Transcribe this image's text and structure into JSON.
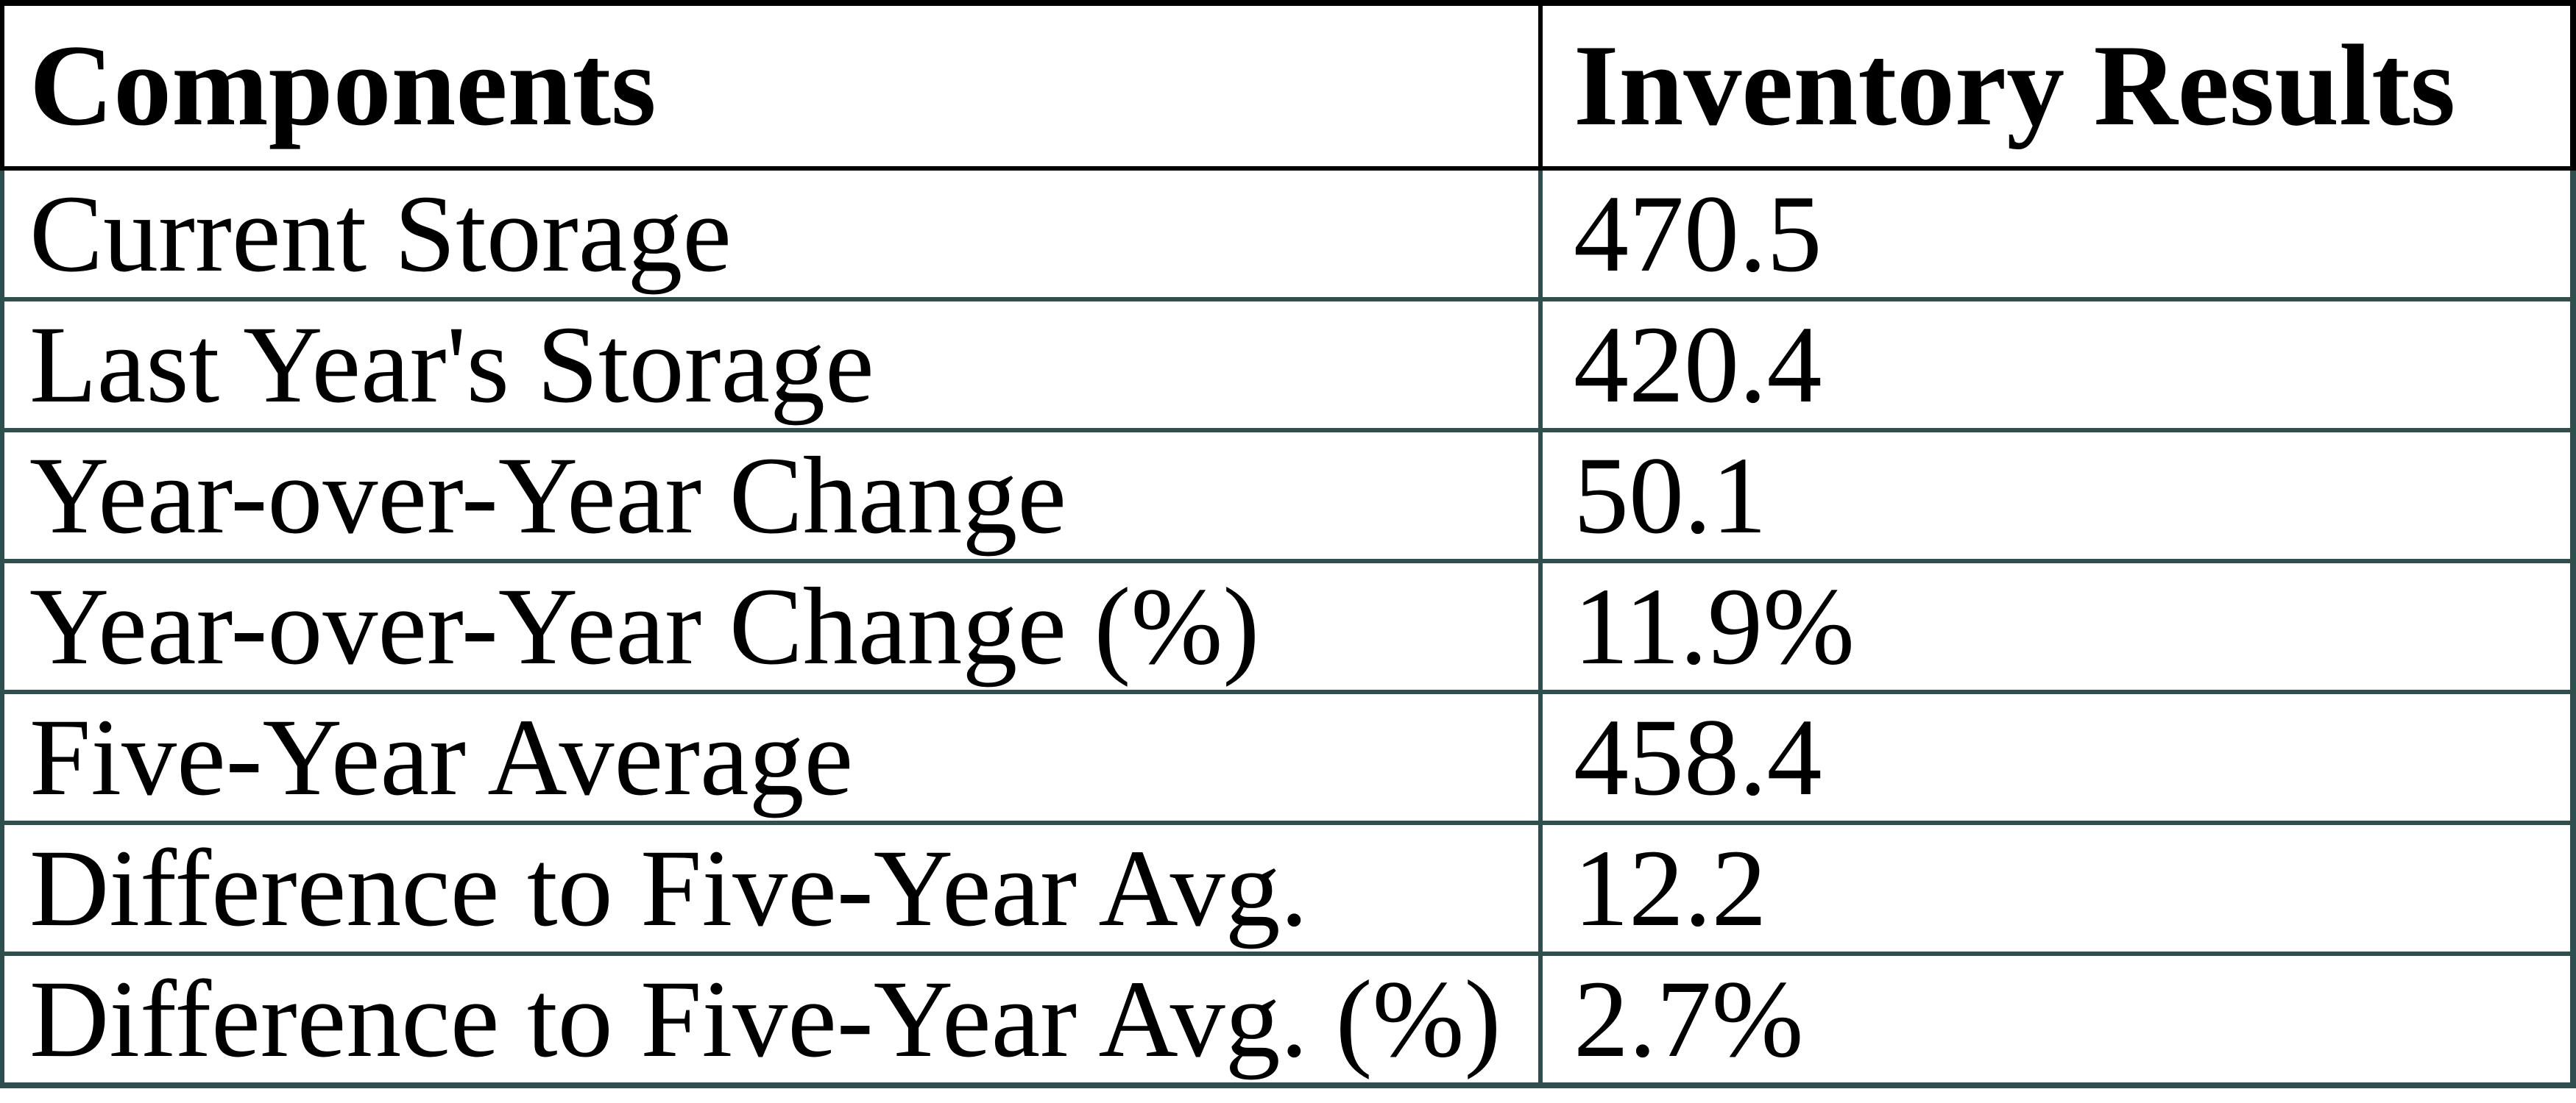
{
  "chart_data": {
    "type": "table",
    "columns": [
      "Components",
      "Inventory Results"
    ],
    "rows": [
      [
        "Current Storage",
        "470.5"
      ],
      [
        "Last Year's Storage",
        "420.4"
      ],
      [
        "Year-over-Year Change",
        "50.1"
      ],
      [
        "Year-over-Year Change (%)",
        "11.9%"
      ],
      [
        "Five-Year Average",
        "458.4"
      ],
      [
        "Difference to Five-Year Avg.",
        "12.2"
      ],
      [
        "Difference to Five-Year Avg. (%)",
        "2.7%"
      ]
    ]
  },
  "colors": {
    "header_border": "#000000",
    "body_border": "#2F4F4F",
    "text": "#000000",
    "background": "#FFFFFF"
  }
}
